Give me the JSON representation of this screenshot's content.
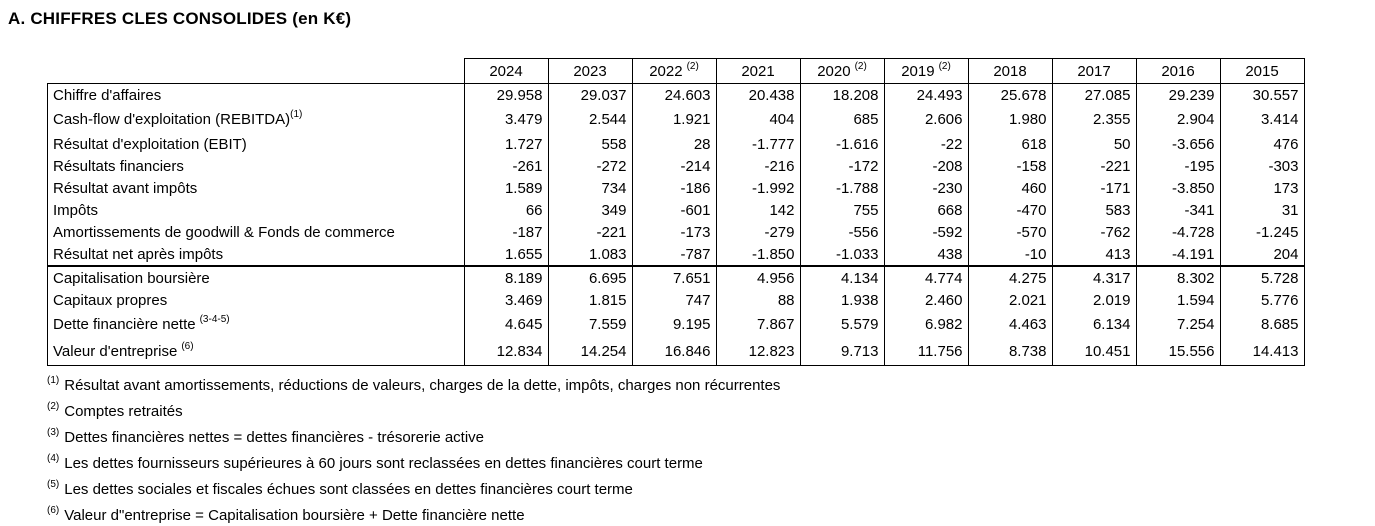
{
  "title": "A. CHIFFRES CLES CONSOLIDES (en K€)",
  "table": {
    "columns": [
      {
        "label": "2024",
        "sup": ""
      },
      {
        "label": "2023",
        "sup": ""
      },
      {
        "label": "2022",
        "sup": "(2)"
      },
      {
        "label": "2021",
        "sup": ""
      },
      {
        "label": "2020",
        "sup": "(2)"
      },
      {
        "label": "2019",
        "sup": "(2)"
      },
      {
        "label": "2018",
        "sup": ""
      },
      {
        "label": "2017",
        "sup": ""
      },
      {
        "label": "2016",
        "sup": ""
      },
      {
        "label": "2015",
        "sup": ""
      }
    ],
    "rows": [
      {
        "label": "Chiffre d'affaires",
        "sup": "",
        "sup_gap": false,
        "tall": false,
        "group_start": false,
        "values": [
          "29.958",
          "29.037",
          "24.603",
          "20.438",
          "18.208",
          "24.493",
          "25.678",
          "27.085",
          "29.239",
          "30.557"
        ]
      },
      {
        "label": "Cash-flow d'exploitation (REBITDA)",
        "sup": "(1)",
        "sup_gap": false,
        "tall": true,
        "group_start": false,
        "values": [
          "3.479",
          "2.544",
          "1.921",
          "404",
          "685",
          "2.606",
          "1.980",
          "2.355",
          "2.904",
          "3.414"
        ]
      },
      {
        "label": "Résultat d'exploitation (EBIT)",
        "sup": "",
        "sup_gap": false,
        "tall": false,
        "group_start": false,
        "values": [
          "1.727",
          "558",
          "28",
          "-1.777",
          "-1.616",
          "-22",
          "618",
          "50",
          "-3.656",
          "476"
        ]
      },
      {
        "label": "Résultats financiers",
        "sup": "",
        "sup_gap": false,
        "tall": false,
        "group_start": false,
        "values": [
          "-261",
          "-272",
          "-214",
          "-216",
          "-172",
          "-208",
          "-158",
          "-221",
          "-195",
          "-303"
        ]
      },
      {
        "label": "Résultat avant impôts",
        "sup": "",
        "sup_gap": false,
        "tall": false,
        "group_start": false,
        "values": [
          "1.589",
          "734",
          "-186",
          "-1.992",
          "-1.788",
          "-230",
          "460",
          "-171",
          "-3.850",
          "173"
        ]
      },
      {
        "label": "Impôts",
        "sup": "",
        "sup_gap": false,
        "tall": false,
        "group_start": false,
        "values": [
          "66",
          "349",
          "-601",
          "142",
          "755",
          "668",
          "-470",
          "583",
          "-341",
          "31"
        ]
      },
      {
        "label": "Amortissements de goodwill & Fonds de commerce",
        "sup": "",
        "sup_gap": false,
        "tall": false,
        "group_start": false,
        "values": [
          "-187",
          "-221",
          "-173",
          "-279",
          "-556",
          "-592",
          "-570",
          "-762",
          "-4.728",
          "-1.245"
        ]
      },
      {
        "label": "Résultat net après impôts",
        "sup": "",
        "sup_gap": false,
        "tall": false,
        "group_start": false,
        "values": [
          "1.655",
          "1.083",
          "-787",
          "-1.850",
          "-1.033",
          "438",
          "-10",
          "413",
          "-4.191",
          "204"
        ]
      },
      {
        "label": "Capitalisation boursière",
        "sup": "",
        "sup_gap": false,
        "tall": false,
        "group_start": true,
        "values": [
          "8.189",
          "6.695",
          "7.651",
          "4.956",
          "4.134",
          "4.774",
          "4.275",
          "4.317",
          "8.302",
          "5.728"
        ]
      },
      {
        "label": "Capitaux propres",
        "sup": "",
        "sup_gap": false,
        "tall": false,
        "group_start": false,
        "values": [
          "3.469",
          "1.815",
          "747",
          "88",
          "1.938",
          "2.460",
          "2.021",
          "2.019",
          "1.594",
          "5.776"
        ]
      },
      {
        "label": "Dette financière nette",
        "sup": "(3-4-5)",
        "sup_gap": true,
        "tall": true,
        "group_start": false,
        "values": [
          "4.645",
          "7.559",
          "9.195",
          "7.867",
          "5.579",
          "6.982",
          "4.463",
          "6.134",
          "7.254",
          "8.685"
        ]
      },
      {
        "label": "Valeur d'entreprise",
        "sup": "(6)",
        "sup_gap": true,
        "tall": true,
        "group_start": false,
        "values": [
          "12.834",
          "14.254",
          "16.846",
          "12.823",
          "9.713",
          "11.756",
          "8.738",
          "10.451",
          "15.556",
          "14.413"
        ]
      }
    ]
  },
  "footnotes": [
    {
      "marker": "(1)",
      "text": "Résultat avant amortissements, réductions de valeurs, charges de la dette, impôts, charges non récurrentes"
    },
    {
      "marker": "(2)",
      "text": "Comptes retraités"
    },
    {
      "marker": "(3)",
      "text": "Dettes financières nettes = dettes financières - trésorerie active"
    },
    {
      "marker": "(4)",
      "text": "Les dettes fournisseurs supérieures à 60 jours sont reclassées en dettes financières court terme"
    },
    {
      "marker": "(5)",
      "text": "Les dettes sociales et fiscales échues sont classées en dettes financières court terme"
    },
    {
      "marker": "(6)",
      "text": "Valeur d\"entreprise = Capitalisation boursière + Dette financière nette"
    }
  ]
}
